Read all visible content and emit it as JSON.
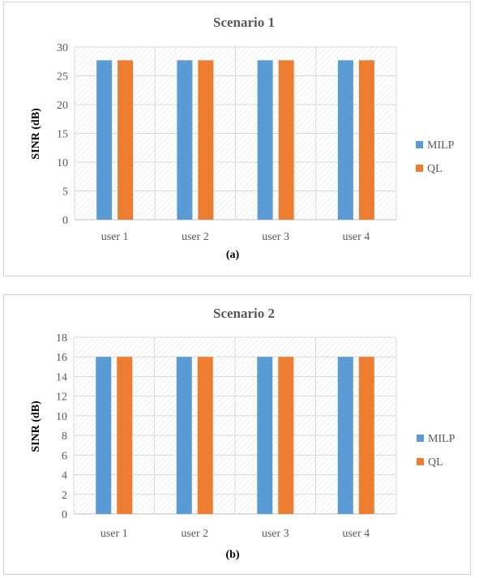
{
  "charts": [
    {
      "title": "Scenario 1",
      "caption": "(a)",
      "ylabel": "SINR (dB)",
      "chart_data": {
        "type": "bar",
        "categories": [
          "user 1",
          "user 2",
          "user 3",
          "user 4"
        ],
        "series": [
          {
            "name": "MILP",
            "values": [
              27.7,
              27.7,
              27.7,
              27.7
            ]
          },
          {
            "name": "QL",
            "values": [
              27.7,
              27.7,
              27.7,
              27.7
            ]
          }
        ],
        "ylim": [
          0,
          30
        ],
        "yticks": [
          0,
          5,
          10,
          15,
          20,
          25,
          30
        ],
        "grid": true,
        "legend": "right"
      }
    },
    {
      "title": "Scenario 2",
      "caption": "(b)",
      "ylabel": "SINR (dB)",
      "chart_data": {
        "type": "bar",
        "categories": [
          "user 1",
          "user 2",
          "user 3",
          "user 4"
        ],
        "series": [
          {
            "name": "MILP",
            "values": [
              16,
              16,
              16,
              16
            ]
          },
          {
            "name": "QL",
            "values": [
              16,
              16,
              16,
              16
            ]
          }
        ],
        "ylim": [
          0,
          18
        ],
        "yticks": [
          0,
          2,
          4,
          6,
          8,
          10,
          12,
          14,
          16,
          18
        ],
        "grid": true,
        "legend": "right"
      }
    }
  ],
  "colors": {
    "MILP": "#5b9bd5",
    "QL": "#ed7d31",
    "grid": "#d9d9d9",
    "text": "#595959",
    "title": "#595959"
  }
}
